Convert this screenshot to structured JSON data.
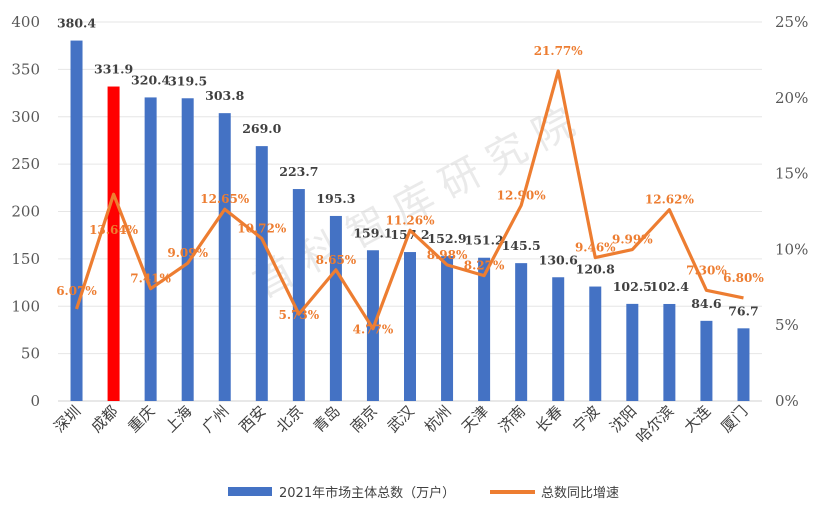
{
  "chart_data": {
    "type": "bar+line",
    "categories": [
      "深圳",
      "成都",
      "重庆",
      "上海",
      "广州",
      "西安",
      "北京",
      "青岛",
      "南京",
      "武汉",
      "杭州",
      "天津",
      "济南",
      "长春",
      "宁波",
      "沈阳",
      "哈尔滨",
      "大连",
      "厦门"
    ],
    "series": [
      {
        "name": "2021年市场主体总数（万户）",
        "type": "bar",
        "axis": "left",
        "values": [
          380.4,
          331.9,
          320.4,
          319.5,
          303.8,
          269.0,
          223.7,
          195.3,
          159.1,
          157.2,
          152.9,
          151.2,
          145.5,
          130.6,
          120.8,
          102.5,
          102.4,
          84.6,
          76.7
        ],
        "labels": [
          "380.4",
          "331.9",
          "320.4",
          "319.5",
          "303.8",
          "269.0",
          "223.7",
          "195.3",
          "159.1",
          "157.2",
          "152.9",
          "151.2",
          "145.5",
          "130.6",
          "120.8",
          "102.5",
          "102.4",
          "84.6",
          "76.7"
        ]
      },
      {
        "name": "总数同比增速",
        "type": "line",
        "axis": "right",
        "values": [
          6.07,
          13.64,
          7.41,
          9.09,
          12.65,
          10.72,
          5.73,
          8.65,
          4.77,
          11.26,
          8.98,
          8.27,
          12.9,
          21.77,
          9.46,
          9.99,
          12.62,
          7.3,
          6.8
        ],
        "labels": [
          "6.07%",
          "13.64%",
          "7.41%",
          "9.09%",
          "12.65%",
          "10.72%",
          "5.73%",
          "8.65%",
          "4.77%",
          "11.26%",
          "8.98%",
          "8.27%",
          "12.90%",
          "21.77%",
          "9.46%",
          "9.99%",
          "12.62%",
          "7.30%",
          "6.80%"
        ]
      }
    ],
    "highlight_category": "成都",
    "y_left": {
      "range": [
        0,
        400
      ],
      "ticks": [
        "0",
        "50",
        "100",
        "150",
        "200",
        "250",
        "300",
        "350",
        "400"
      ]
    },
    "y_right": {
      "range": [
        0,
        25
      ],
      "ticks": [
        "0%",
        "5%",
        "10%",
        "15%",
        "20%",
        "25%"
      ]
    },
    "legend_position": "bottom",
    "colors": {
      "bar": "#4472C4",
      "highlight": "#FF0000",
      "line": "#ED7D31"
    }
  },
  "watermark": "首 科 智 库 研 究 院"
}
